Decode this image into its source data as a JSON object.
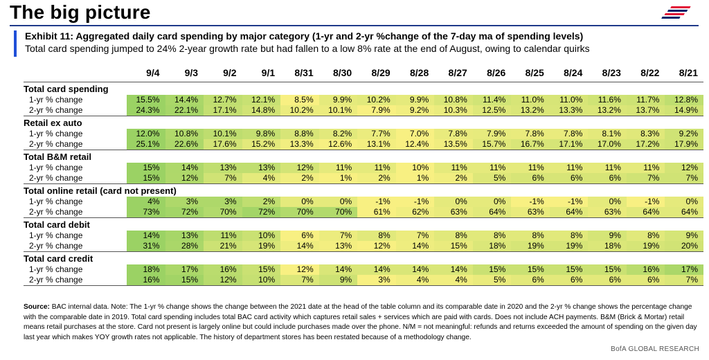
{
  "header": {
    "title": "The big picture",
    "exhibit_title": "Exhibit 11: Aggregated daily card spending by major category (1-yr and 2-yr %change of the 7-day ma of spending levels)",
    "exhibit_subtitle": "Total card spending jumped to 24% 2-year growth rate but had fallen to a low 8% rate at the end of August, owing to calendar quirks"
  },
  "colors": {
    "accent_bar": "#1f4fd8",
    "title_rule": "#1f3a8a",
    "logo_red": "#e31837",
    "logo_blue": "#012169"
  },
  "table": {
    "dates": [
      "9/4",
      "9/3",
      "9/2",
      "9/1",
      "8/31",
      "8/30",
      "8/29",
      "8/28",
      "8/27",
      "8/26",
      "8/25",
      "8/24",
      "8/23",
      "8/22",
      "8/21"
    ],
    "categories": [
      {
        "name": "Total card spending",
        "rows": [
          {
            "label": "1-yr % change",
            "values": [
              "15.5%",
              "14.4%",
              "12.7%",
              "12.1%",
              "8.5%",
              "9.9%",
              "10.2%",
              "9.9%",
              "10.8%",
              "11.4%",
              "11.0%",
              "11.0%",
              "11.6%",
              "11.7%",
              "12.8%"
            ]
          },
          {
            "label": "2-yr % change",
            "values": [
              "24.3%",
              "22.1%",
              "17.1%",
              "14.8%",
              "10.2%",
              "10.1%",
              "7.9%",
              "9.2%",
              "10.3%",
              "12.5%",
              "13.2%",
              "13.3%",
              "13.2%",
              "13.7%",
              "14.9%"
            ]
          }
        ]
      },
      {
        "name": "Retail ex auto",
        "rows": [
          {
            "label": "1-yr % change",
            "values": [
              "12.0%",
              "10.8%",
              "10.1%",
              "9.8%",
              "8.8%",
              "8.2%",
              "7.7%",
              "7.0%",
              "7.8%",
              "7.9%",
              "7.8%",
              "7.8%",
              "8.1%",
              "8.3%",
              "9.2%"
            ]
          },
          {
            "label": "2-yr % change",
            "values": [
              "25.1%",
              "22.6%",
              "17.6%",
              "15.2%",
              "13.3%",
              "12.6%",
              "13.1%",
              "12.4%",
              "13.5%",
              "15.7%",
              "16.7%",
              "17.1%",
              "17.0%",
              "17.2%",
              "17.9%"
            ]
          }
        ]
      },
      {
        "name": "Total B&M retail",
        "rows": [
          {
            "label": "1-yr % change",
            "values": [
              "15%",
              "14%",
              "13%",
              "13%",
              "12%",
              "11%",
              "11%",
              "10%",
              "11%",
              "11%",
              "11%",
              "11%",
              "11%",
              "11%",
              "12%"
            ]
          },
          {
            "label": "2-yr % change",
            "values": [
              "15%",
              "12%",
              "7%",
              "4%",
              "2%",
              "1%",
              "2%",
              "1%",
              "2%",
              "5%",
              "6%",
              "6%",
              "6%",
              "7%",
              "7%"
            ]
          }
        ]
      },
      {
        "name": "Total online retail (card not present)",
        "rows": [
          {
            "label": "1-yr % change",
            "values": [
              "4%",
              "3%",
              "3%",
              "2%",
              "0%",
              "0%",
              "-1%",
              "-1%",
              "0%",
              "0%",
              "-1%",
              "-1%",
              "0%",
              "-1%",
              "0%"
            ]
          },
          {
            "label": "2-yr % change",
            "values": [
              "73%",
              "72%",
              "70%",
              "72%",
              "70%",
              "70%",
              "61%",
              "62%",
              "63%",
              "64%",
              "63%",
              "64%",
              "63%",
              "64%",
              "64%"
            ]
          }
        ]
      },
      {
        "name": "Total card debit",
        "rows": [
          {
            "label": "1-yr % change",
            "values": [
              "14%",
              "13%",
              "11%",
              "10%",
              "6%",
              "7%",
              "8%",
              "7%",
              "8%",
              "8%",
              "8%",
              "8%",
              "9%",
              "8%",
              "9%"
            ]
          },
          {
            "label": "2-yr % change",
            "values": [
              "31%",
              "28%",
              "21%",
              "19%",
              "14%",
              "13%",
              "12%",
              "14%",
              "15%",
              "18%",
              "19%",
              "19%",
              "18%",
              "19%",
              "20%"
            ]
          }
        ]
      },
      {
        "name": "Total card credit",
        "rows": [
          {
            "label": "1-yr % change",
            "values": [
              "18%",
              "17%",
              "16%",
              "15%",
              "12%",
              "14%",
              "14%",
              "14%",
              "14%",
              "15%",
              "15%",
              "15%",
              "15%",
              "16%",
              "17%"
            ]
          },
          {
            "label": "2-yr % change",
            "values": [
              "16%",
              "15%",
              "12%",
              "10%",
              "7%",
              "9%",
              "3%",
              "4%",
              "4%",
              "5%",
              "6%",
              "6%",
              "6%",
              "6%",
              "7%"
            ]
          }
        ]
      }
    ]
  },
  "footer": {
    "source_label": "Source:",
    "source_text": "BAC internal data. Note: The 1-yr % change shows the change between the 2021 date at the head of the table column and its comparable date in 2020 and the 2-yr % change shows the percentage change with the comparable date in 2019. Total card spending includes total BAC card activity which captures retail sales + services which are paid with cards. Does not include ACH payments. B&M (Brick & Mortar) retail means retail purchases at the store. Card not present is largely online but could include purchases made over the phone. N/M = not meaningful: refunds and returns exceeded the amount of spending on the given day last year which makes YOY growth rates not applicable. The history of department stores has been restated because of a methodology change.",
    "brand": "BofA GLOBAL RESEARCH"
  }
}
